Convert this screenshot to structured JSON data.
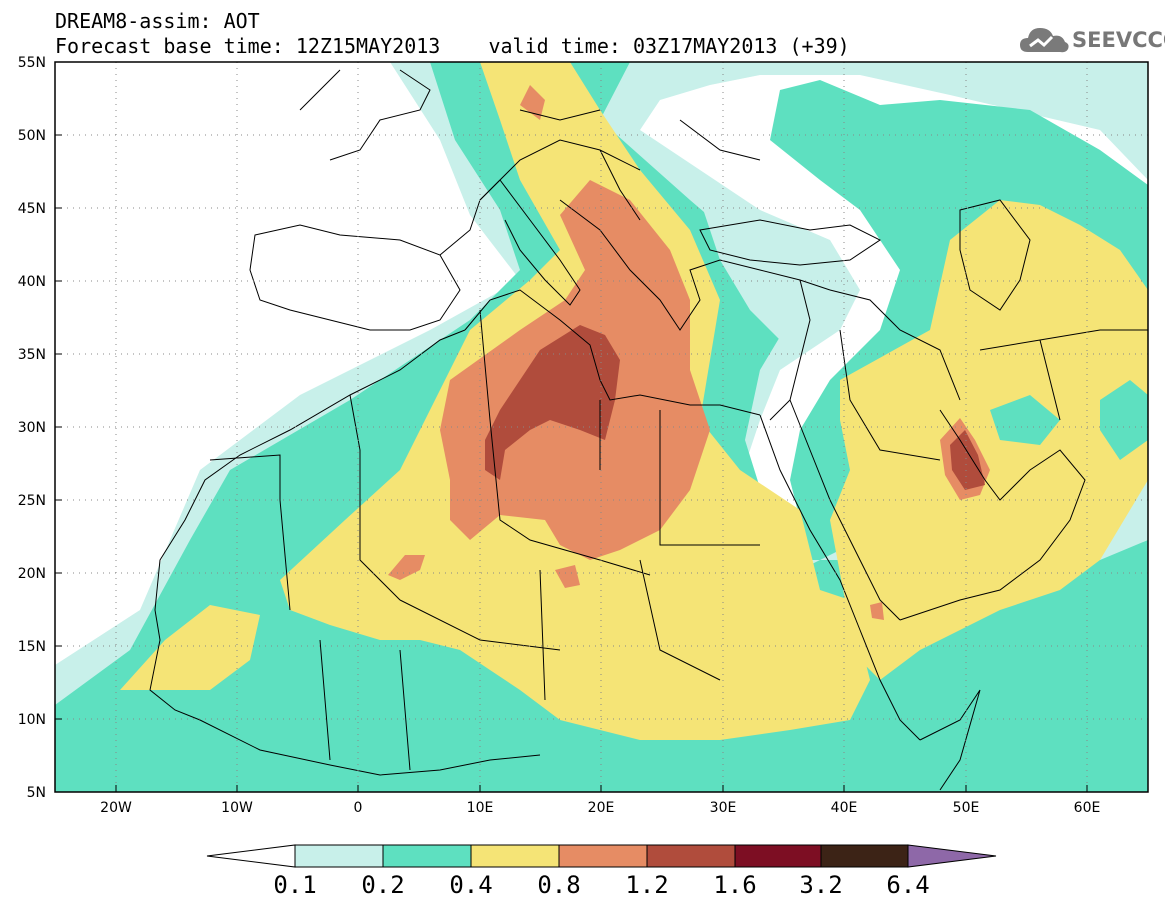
{
  "header": {
    "line1": "DREAM8-assim: AOT",
    "line2": "Forecast base time: 12Z15MAY2013    valid time: 03Z17MAY2013 (+39)"
  },
  "logo": {
    "text": "SEEVCCC",
    "icon": "cloud-icon"
  },
  "map": {
    "lon_range": [
      -25,
      65
    ],
    "lat_range": [
      5,
      55
    ],
    "lat_labels": [
      "55N",
      "50N",
      "45N",
      "40N",
      "35N",
      "30N",
      "25N",
      "20N",
      "15N",
      "10N",
      "5N"
    ],
    "lon_labels": [
      "20W",
      "10W",
      "0",
      "10E",
      "20E",
      "30E",
      "40E",
      "50E",
      "60E"
    ],
    "grid": "dotted"
  },
  "colorbar": {
    "levels": [
      "0.1",
      "0.2",
      "0.4",
      "0.8",
      "1.2",
      "1.6",
      "3.2",
      "6.4"
    ],
    "colors": [
      "#ffffff",
      "#c8f0ea",
      "#5ee0c0",
      "#f5e476",
      "#e68c64",
      "#b04c3c",
      "#7d0e23",
      "#3c2316",
      "#8e68a8"
    ]
  },
  "colors": {
    "c01": "#c8f0ea",
    "c02": "#5ee0c0",
    "c04": "#f5e476",
    "c08": "#e68c64",
    "c12": "#b04c3c"
  }
}
